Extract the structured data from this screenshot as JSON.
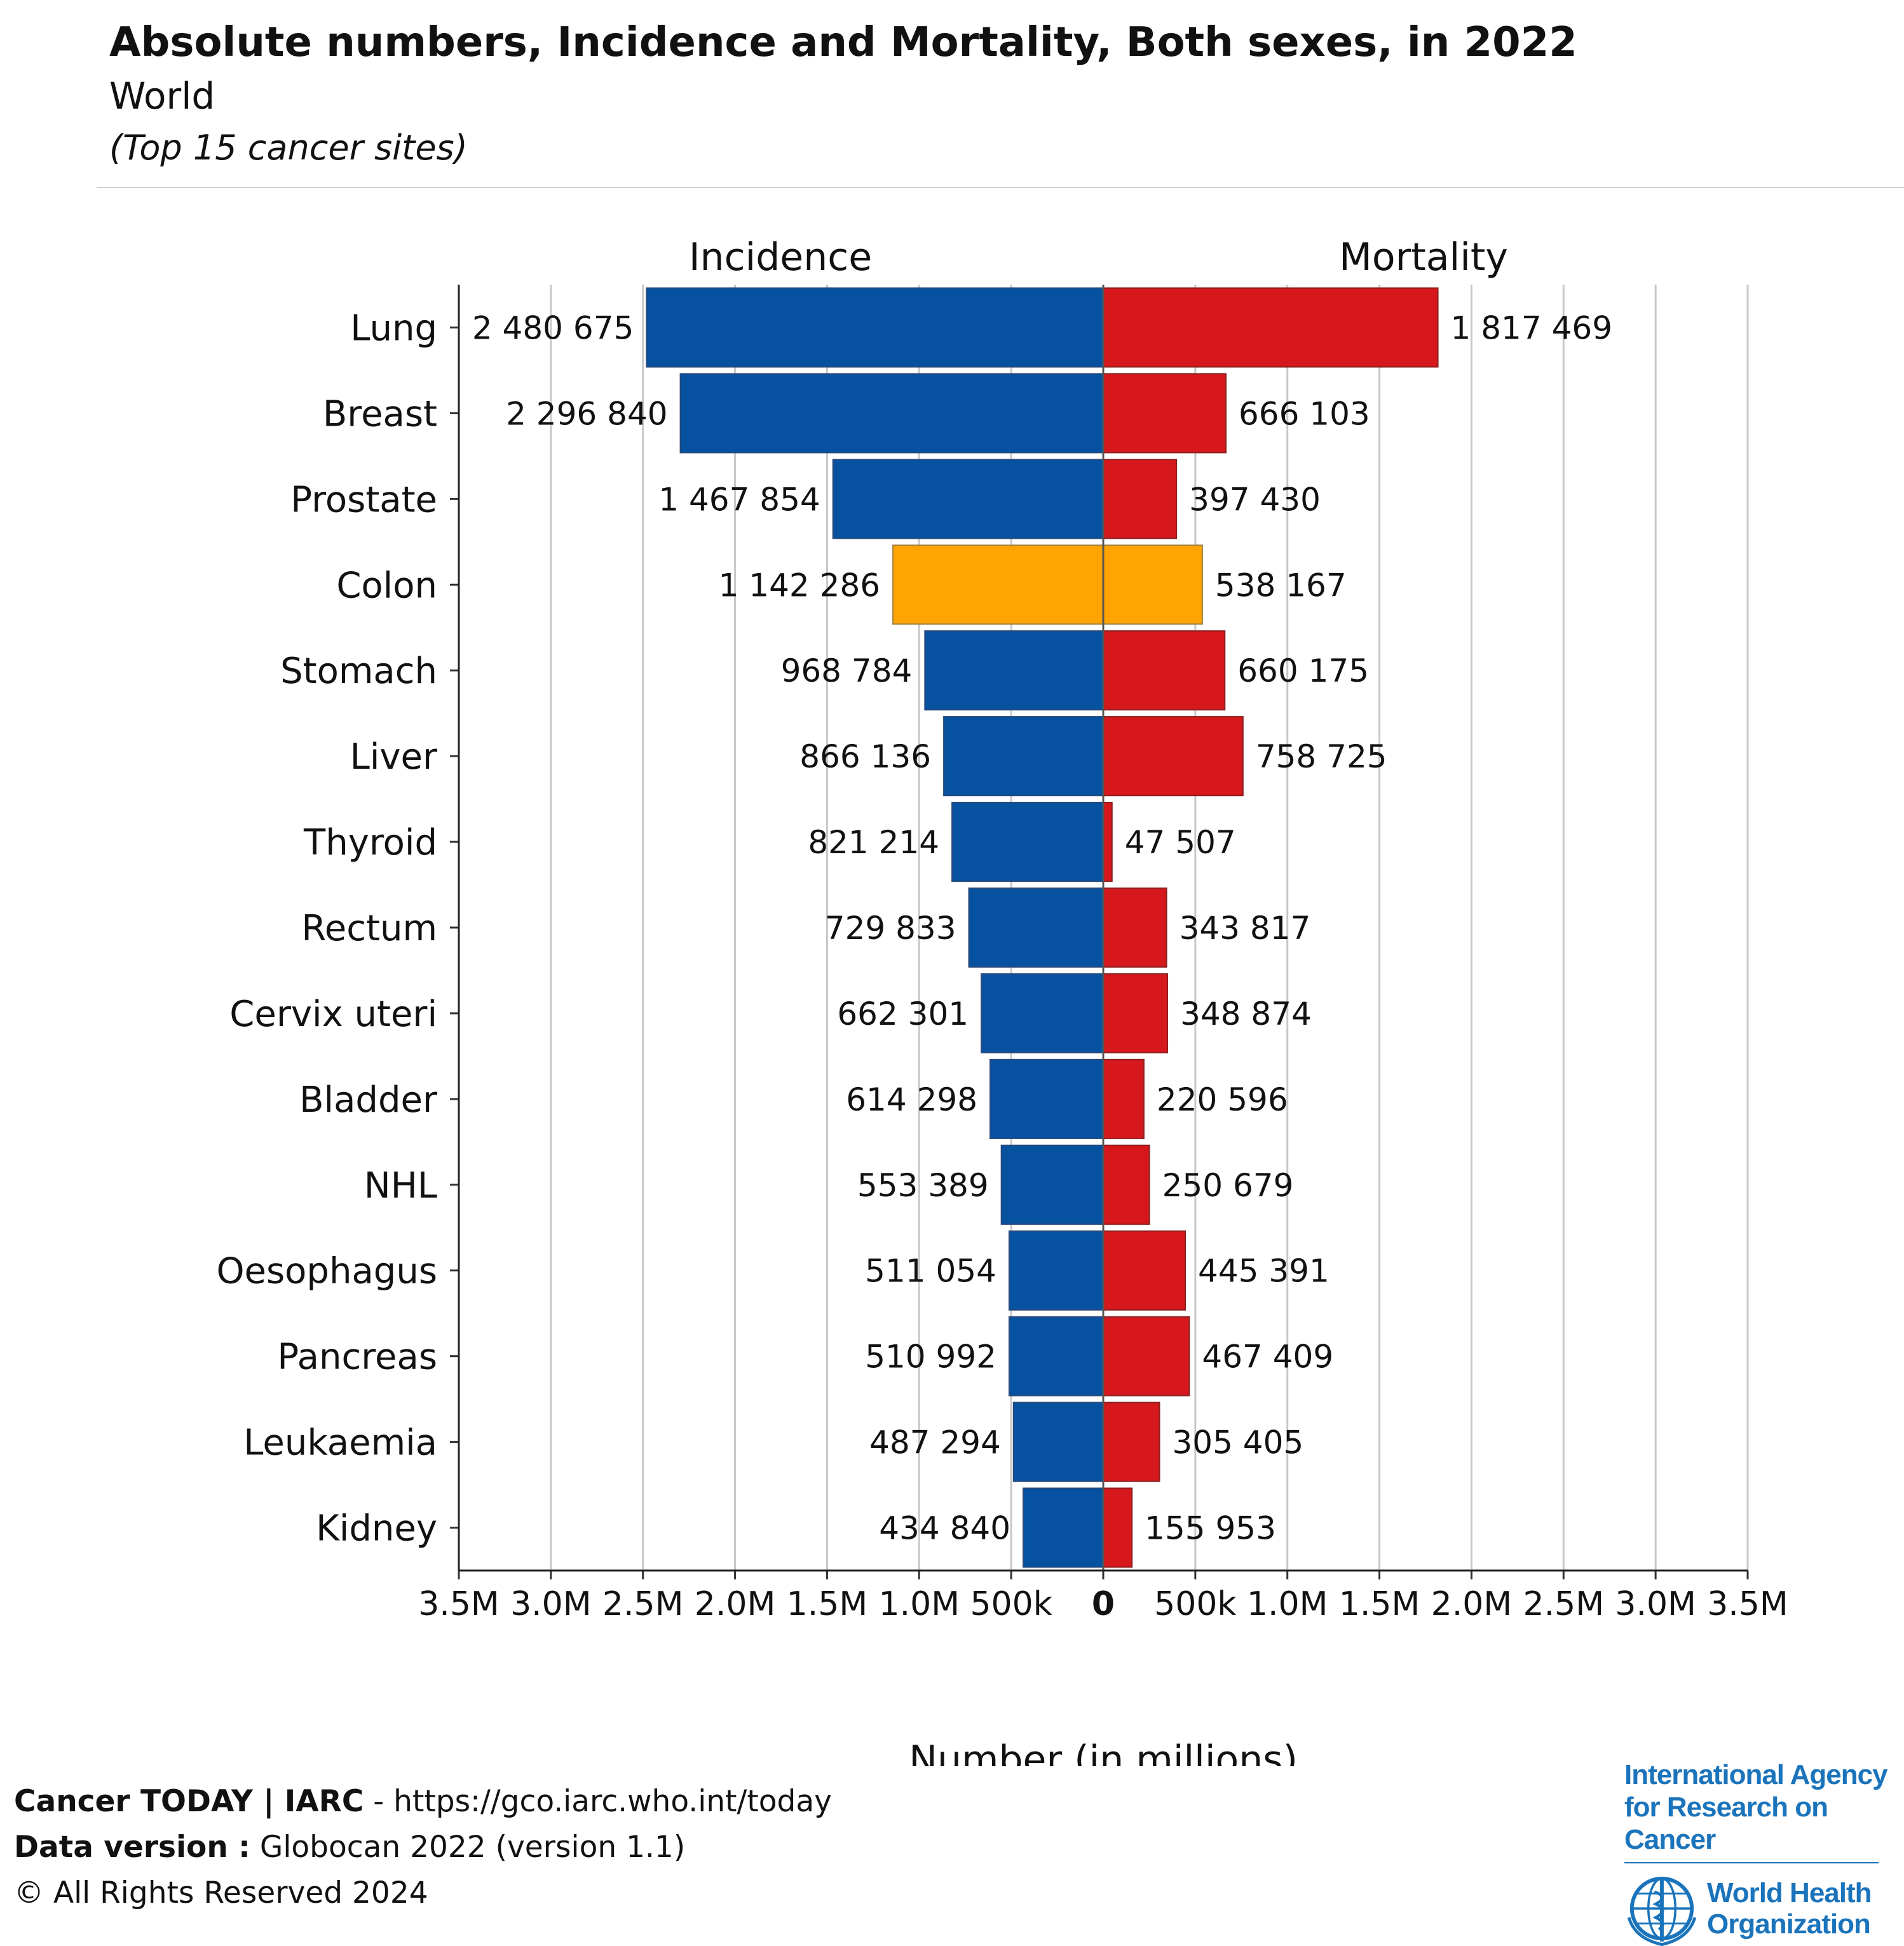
{
  "header": {
    "title": "Absolute numbers, Incidence and Mortality, Both sexes, in 2022",
    "region": "World",
    "scope": "(Top 15 cancer sites)"
  },
  "chart_data": {
    "type": "bar",
    "orientation": "horizontal-butterfly",
    "title": "Absolute numbers, Incidence and Mortality, Both sexes, in 2022",
    "subtitle": "World",
    "xlabel": "Number (in millions)",
    "xlim": [
      -3500000,
      3500000
    ],
    "grid": true,
    "highlight": "Colon",
    "categories": [
      "Lung",
      "Breast",
      "Prostate",
      "Colon",
      "Stomach",
      "Liver",
      "Thyroid",
      "Rectum",
      "Cervix uteri",
      "Bladder",
      "NHL",
      "Oesophagus",
      "Pancreas",
      "Leukaemia",
      "Kidney"
    ],
    "series": [
      {
        "name": "Incidence",
        "color": "#0652a1",
        "values": [
          2480675,
          2296840,
          1467854,
          1142286,
          968784,
          866136,
          821214,
          729833,
          662301,
          614298,
          553389,
          511054,
          510992,
          487294,
          434840
        ],
        "labels": [
          "2 480 675",
          "2 296 840",
          "1 467 854",
          "1 142 286",
          "968 784",
          "866 136",
          "821 214",
          "729 833",
          "662 301",
          "614 298",
          "553 389",
          "511 054",
          "510 992",
          "487 294",
          "434 840"
        ]
      },
      {
        "name": "Mortality",
        "color": "#d6171b",
        "values": [
          1817469,
          666103,
          397430,
          538167,
          660175,
          758725,
          47507,
          343817,
          348874,
          220596,
          250679,
          445391,
          467409,
          305405,
          155953
        ],
        "labels": [
          "1 817 469",
          "666 103",
          "397 430",
          "538 167",
          "660 175",
          "758 725",
          "47 507",
          "343 817",
          "348 874",
          "220 596",
          "250 679",
          "445 391",
          "467 409",
          "305 405",
          "155 953"
        ]
      }
    ],
    "highlight_color": "#ffa400",
    "tick_values": [
      -3500000,
      -3000000,
      -2500000,
      -2000000,
      -1500000,
      -1000000,
      -500000,
      0,
      500000,
      1000000,
      1500000,
      2000000,
      2500000,
      3000000,
      3500000
    ],
    "tick_labels": [
      "3.5M",
      "3.0M",
      "2.5M",
      "2.0M",
      "1.5M",
      "1.0M",
      "500k",
      "0",
      "500k",
      "1.0M",
      "1.5M",
      "2.0M",
      "2.5M",
      "3.0M",
      "3.5M"
    ]
  },
  "footer": {
    "brand": "Cancer TODAY | IARC",
    "url_text": " - https://gco.iarc.who.int/today",
    "version_label": "Data version :",
    "version_value": " Globocan 2022 (version 1.1)",
    "copyright": "© All Rights Reserved 2024"
  },
  "logos": {
    "iarc_line1": "International Agency",
    "iarc_line2": "for Research on Cancer",
    "who_line1": "World Health",
    "who_line2": "Organization"
  }
}
